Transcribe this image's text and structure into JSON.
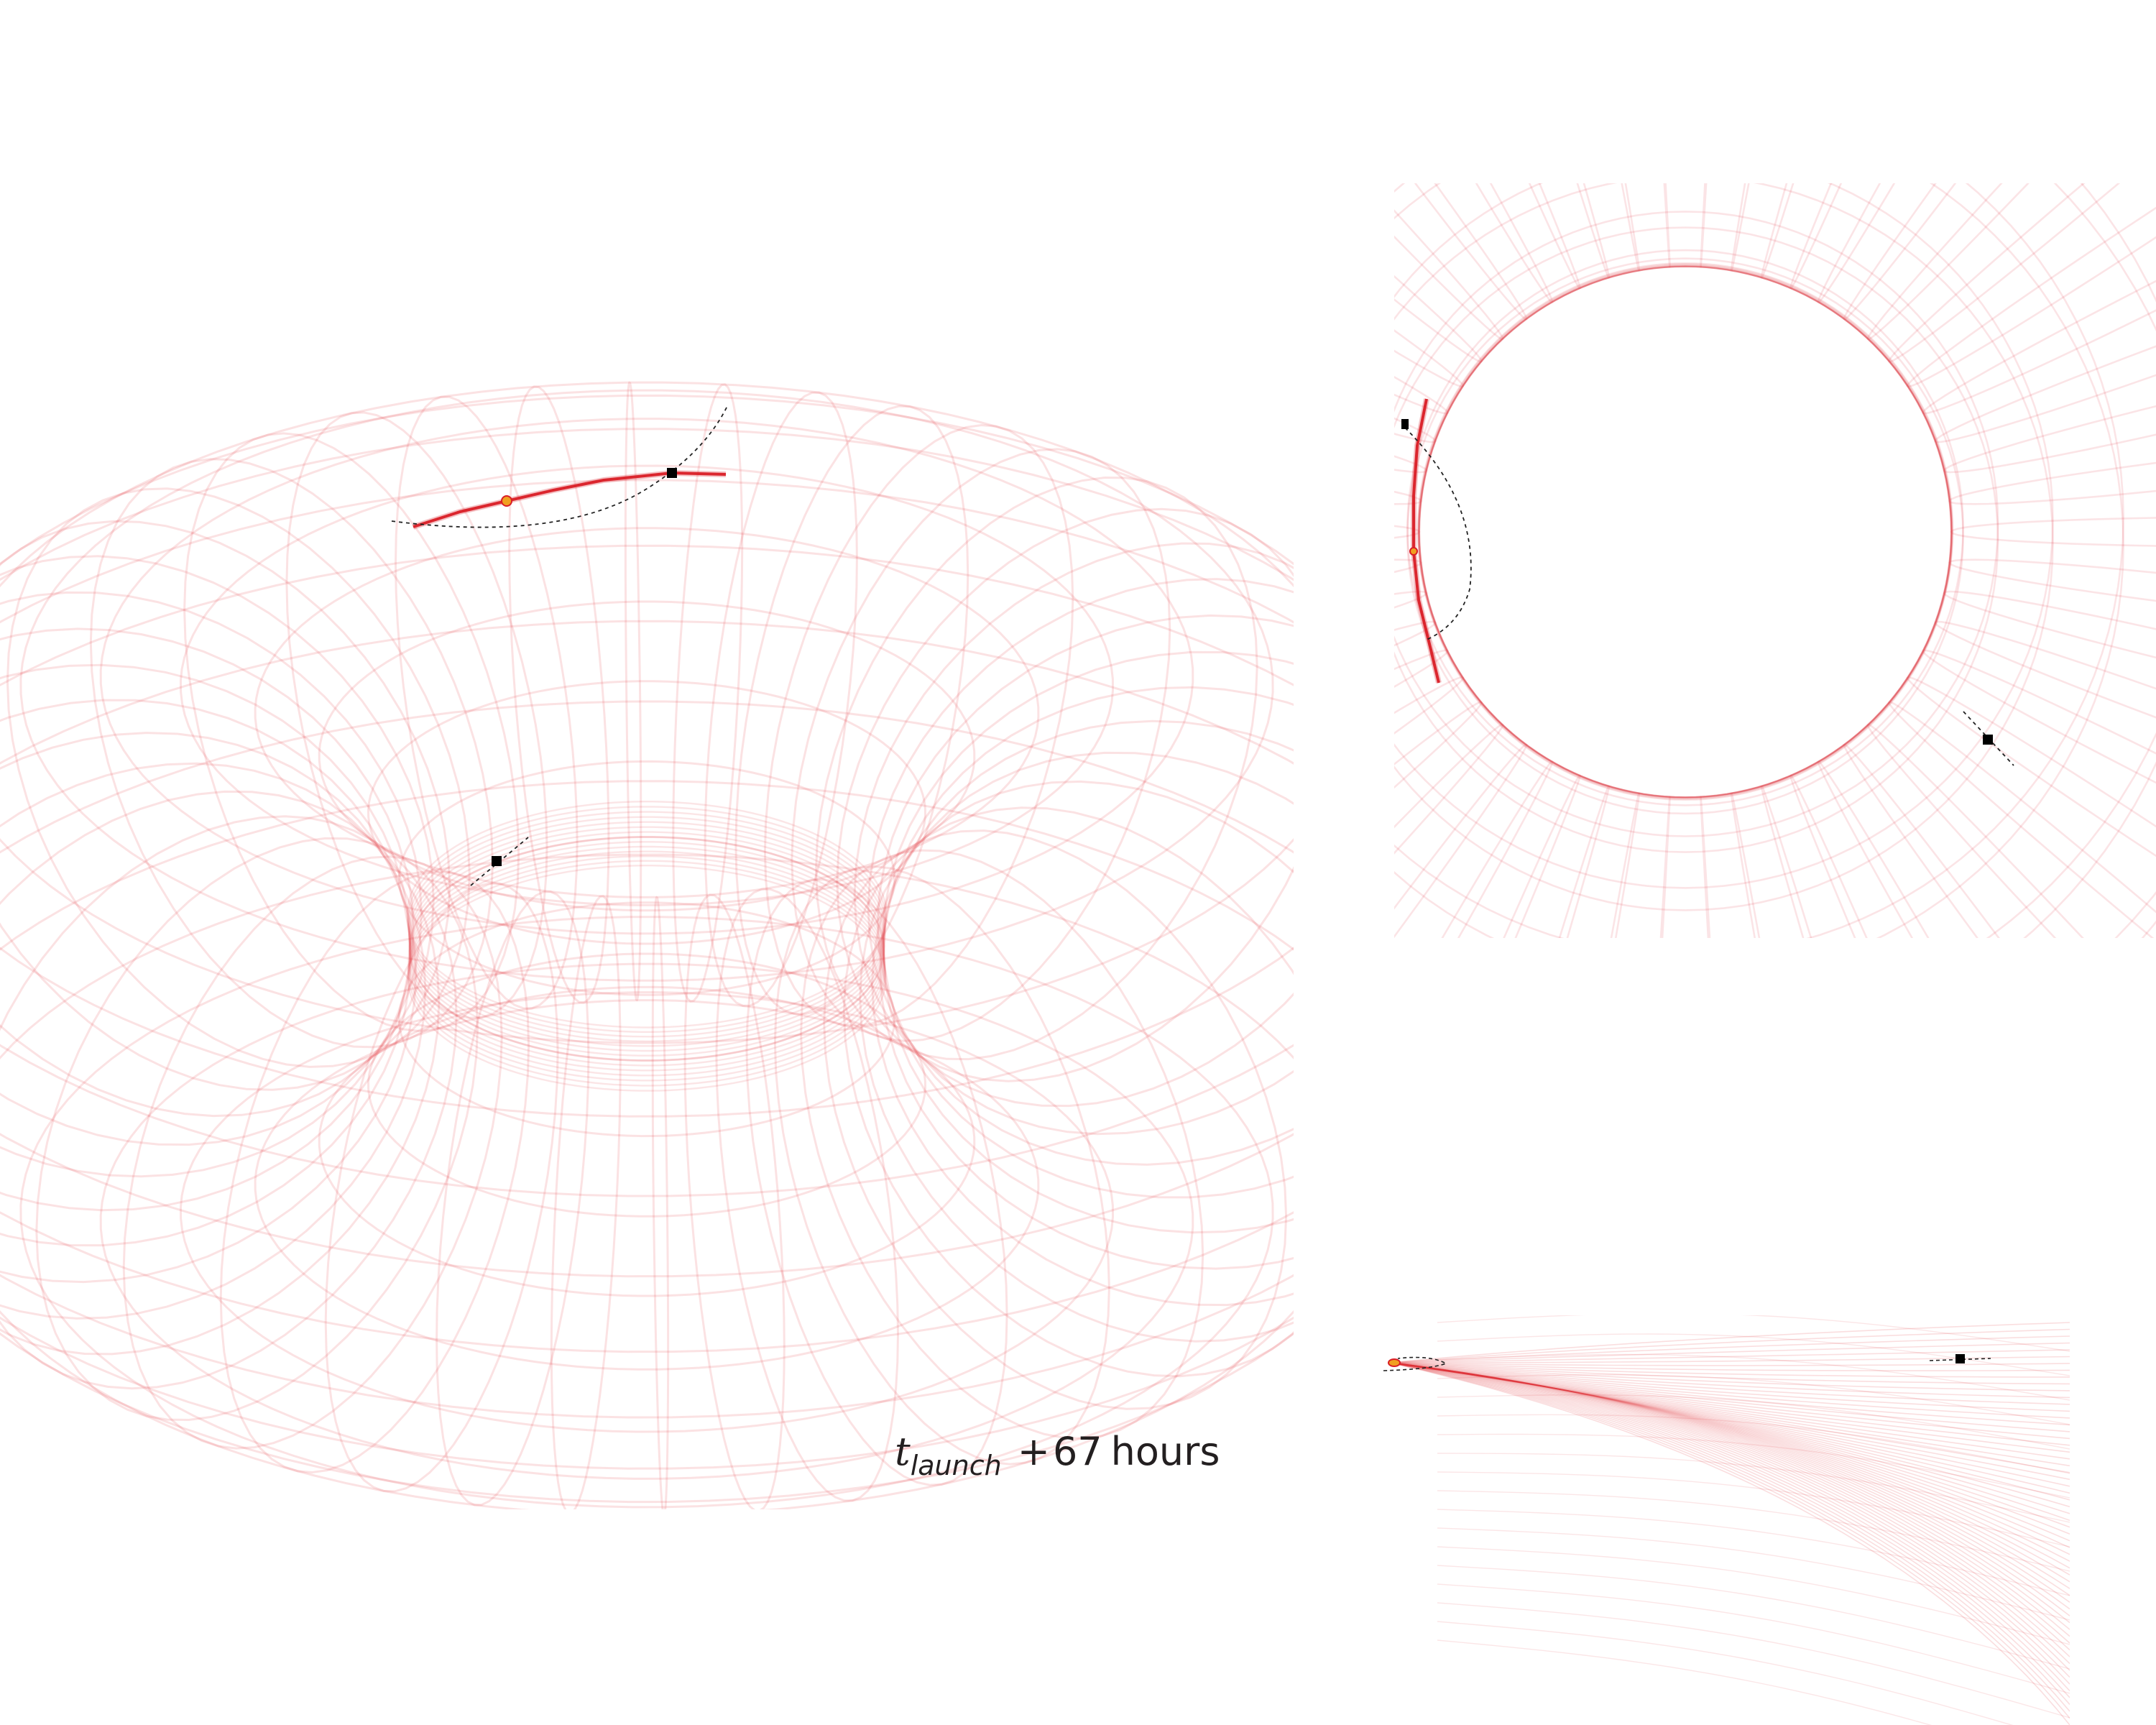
{
  "figure": {
    "time_label": {
      "variable": "t",
      "subscript": "launch",
      "operator": "+",
      "value": "67",
      "unit": "hours"
    },
    "colors": {
      "mesh": "#e0303a",
      "trail": "#d91e26",
      "satellite_marker": "#000000",
      "observer_marker": "#f0a020",
      "orbit_path": "#222222",
      "background": "#ffffff"
    },
    "panels": [
      {
        "id": "main-view",
        "view": "perspective"
      },
      {
        "id": "top-view",
        "view": "top"
      },
      {
        "id": "edge-view",
        "view": "edge-on"
      }
    ]
  }
}
